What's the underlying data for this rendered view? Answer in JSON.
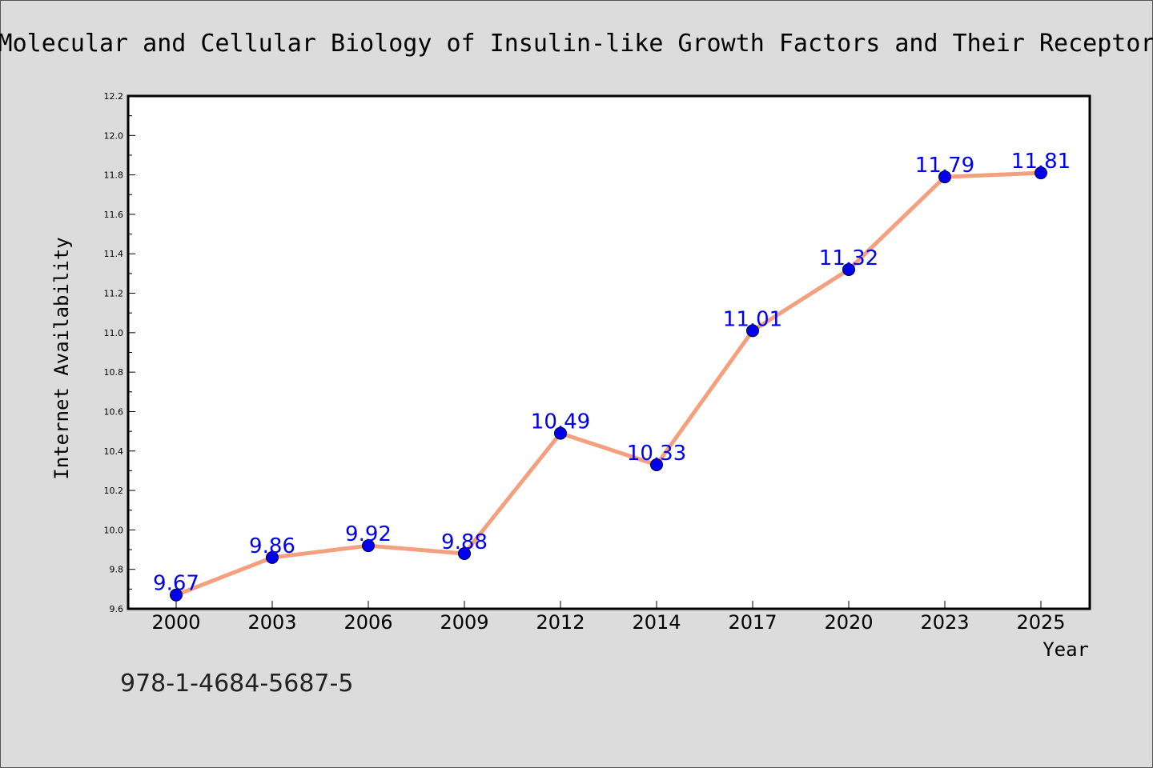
{
  "chart_data": {
    "type": "line",
    "title": "Molecular and Cellular Biology of Insulin-like Growth Factors and Their Receptor",
    "xlabel": "Year",
    "ylabel": "Internet Availability",
    "categories": [
      "2000",
      "2003",
      "2006",
      "2009",
      "2012",
      "2014",
      "2017",
      "2020",
      "2023",
      "2025"
    ],
    "series": [
      {
        "values": [
          9.67,
          9.86,
          9.92,
          9.88,
          10.49,
          10.33,
          11.01,
          11.32,
          11.79,
          11.81
        ],
        "labels": [
          "9.67",
          "9.86",
          "9.92",
          "9.88",
          "10.49",
          "10.33",
          "11.01",
          "11.32",
          "11.79",
          "11.81"
        ]
      }
    ],
    "ylim": [
      9.6,
      12.2
    ],
    "yticks": [
      "9.6",
      "9.8",
      "10.0",
      "10.2",
      "10.4",
      "10.6",
      "10.8",
      "11.0",
      "11.2",
      "11.4",
      "11.6",
      "11.8",
      "12.0",
      "12.2"
    ],
    "grid": false,
    "legend": "none",
    "colors": {
      "line": "#f4a07e",
      "marker": "#0000ee",
      "label": "#0000ee",
      "plot_bg": "#ffffff",
      "page_bg": "#dcdcdc"
    }
  },
  "footer": {
    "isbn": "978-1-4684-5687-5"
  }
}
